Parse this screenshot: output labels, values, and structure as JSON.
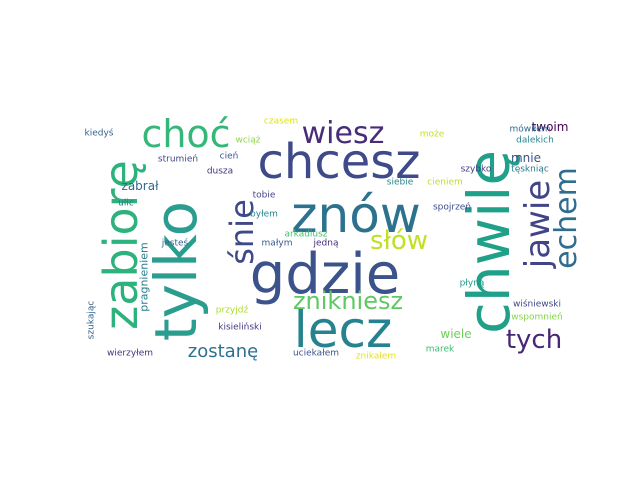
{
  "words": [
    {
      "text": "tylko",
      "color": "#2a9d8f"
    },
    {
      "text": "chwilę",
      "color": "#1fa088"
    },
    {
      "text": "gdzie",
      "color": "#3b528b"
    },
    {
      "text": "lecz",
      "color": "#26828e"
    },
    {
      "text": "chcesz",
      "color": "#3e4a89"
    },
    {
      "text": "znów",
      "color": "#2c728e"
    },
    {
      "text": "zabiorę",
      "color": "#2db27d"
    },
    {
      "text": "choć",
      "color": "#35b779"
    },
    {
      "text": "wiesz",
      "color": "#472c7a"
    },
    {
      "text": "śnie",
      "color": "#3f4889"
    },
    {
      "text": "jawie",
      "color": "#414487"
    },
    {
      "text": "echem",
      "color": "#2f6c8e"
    },
    {
      "text": "słów",
      "color": "#c2df23"
    },
    {
      "text": "znikniesz",
      "color": "#5ec962"
    },
    {
      "text": "tych",
      "color": "#482677"
    },
    {
      "text": "zostanę",
      "color": "#2d718e"
    },
    {
      "text": "twoim",
      "color": "#440154"
    },
    {
      "text": "mnie",
      "color": "#3b528b"
    },
    {
      "text": "zabrał",
      "color": "#31688e"
    },
    {
      "text": "wiele",
      "color": "#6ece58"
    },
    {
      "text": "pragnieniem",
      "color": "#287d8e"
    },
    {
      "text": "kiedyś",
      "color": "#33638d"
    },
    {
      "text": "czasem",
      "color": "#dde318"
    },
    {
      "text": "wciąż",
      "color": "#8fd744"
    },
    {
      "text": "może",
      "color": "#cae11f"
    },
    {
      "text": "mówiłem",
      "color": "#31688e"
    },
    {
      "text": "dalekich",
      "color": "#24868e"
    },
    {
      "text": "tęskniąc",
      "color": "#2a788e"
    },
    {
      "text": "strumień",
      "color": "#3e4a89"
    },
    {
      "text": "cień",
      "color": "#3a538b"
    },
    {
      "text": "szybko",
      "color": "#424086"
    },
    {
      "text": "dusza",
      "color": "#46327e"
    },
    {
      "text": "siebie",
      "color": "#25848e"
    },
    {
      "text": "cieniem",
      "color": "#c0df25"
    },
    {
      "text": "tobie",
      "color": "#404688"
    },
    {
      "text": "ulic",
      "color": "#2c728e"
    },
    {
      "text": "byłem",
      "color": "#23898e"
    },
    {
      "text": "spojrzeń",
      "color": "#3d4e8a"
    },
    {
      "text": "arkadiusz",
      "color": "#48c16e"
    },
    {
      "text": "jesteś",
      "color": "#33638d"
    },
    {
      "text": "małym",
      "color": "#38598c"
    },
    {
      "text": "jedną",
      "color": "#472d7b"
    },
    {
      "text": "przyjdź",
      "color": "#addc30"
    },
    {
      "text": "płyną",
      "color": "#1f9a8a"
    },
    {
      "text": "kisieliński",
      "color": "#453781"
    },
    {
      "text": "wiśniewski",
      "color": "#3f4889"
    },
    {
      "text": "wspomnień",
      "color": "#84d44b"
    },
    {
      "text": "szukając",
      "color": "#33638d"
    },
    {
      "text": "wierzyłem",
      "color": "#46337f"
    },
    {
      "text": "uciekałem",
      "color": "#39568c"
    },
    {
      "text": "znikałem",
      "color": "#e5e419"
    },
    {
      "text": "marek",
      "color": "#3aba76"
    }
  ]
}
